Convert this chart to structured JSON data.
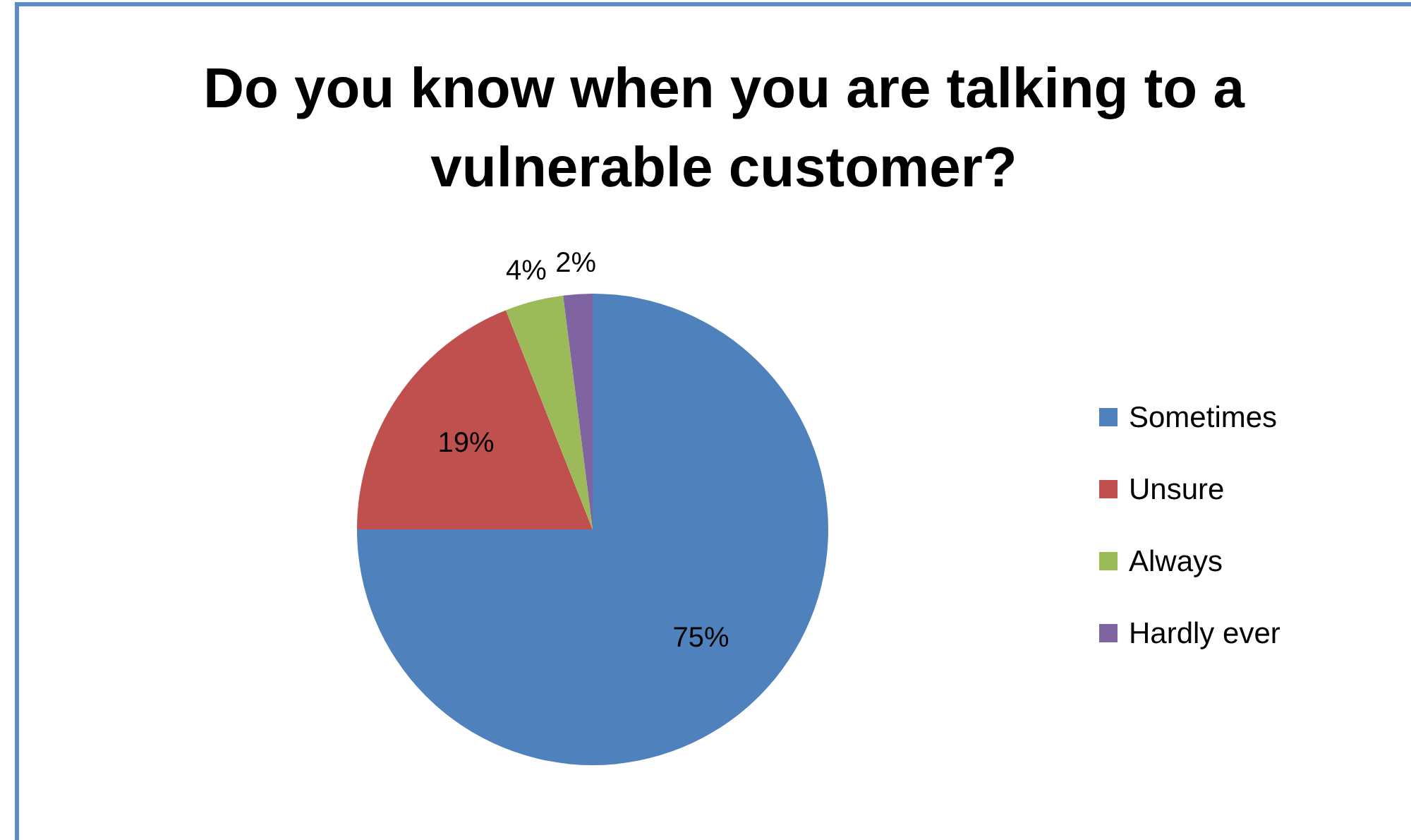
{
  "chart_data": {
    "type": "pie",
    "title": "Do you know when you are talking to a vulnerable customer?",
    "categories": [
      "Sometimes",
      "Unsure",
      "Always",
      "Hardly ever"
    ],
    "values": [
      75,
      19,
      4,
      2
    ],
    "colors": [
      "#4f81bd",
      "#c0504d",
      "#9bbb59",
      "#8064a2"
    ],
    "value_labels": [
      "75%",
      "19%",
      "4%",
      "2%"
    ],
    "legend": "right"
  }
}
